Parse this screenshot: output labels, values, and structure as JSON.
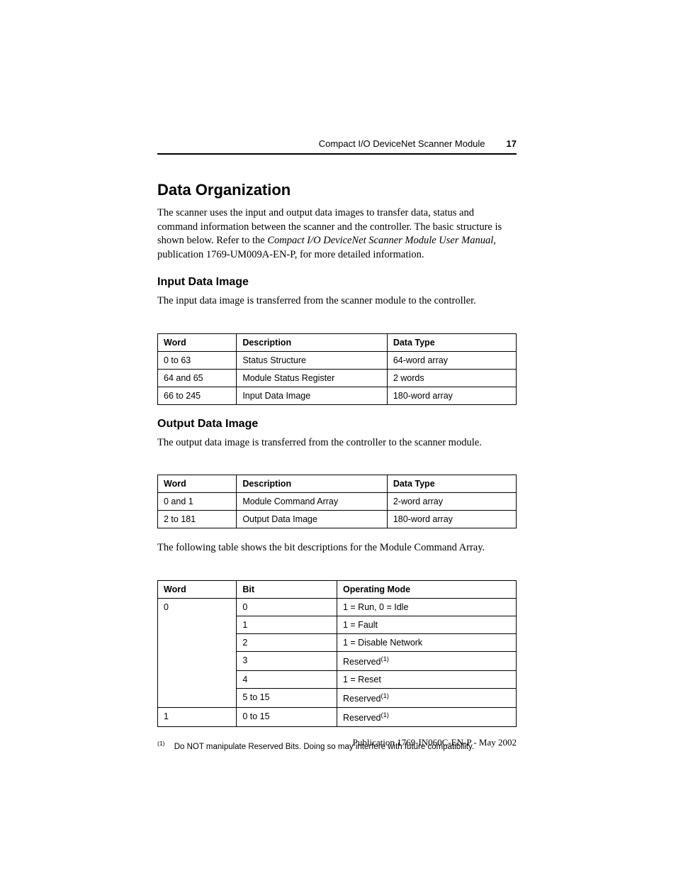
{
  "header": {
    "title": "Compact I/O DeviceNet Scanner Module",
    "page_number": "17"
  },
  "section": {
    "h1": "Data Organization",
    "intro_part1": "The scanner uses the input and output data images to transfer data, status and command information between the scanner and the controller. The basic structure is shown below. Refer to the ",
    "intro_italic": "Compact I/O DeviceNet Scanner Module User Manual",
    "intro_part2": ", publication 1769-UM009A-EN-P, for more detailed information."
  },
  "input_section": {
    "h2": "Input Data Image",
    "text": "The input data image is transferred from the scanner module to the controller.",
    "table": {
      "headers": [
        "Word",
        "Description",
        "Data Type"
      ],
      "rows": [
        [
          "0 to 63",
          "Status Structure",
          "64-word array"
        ],
        [
          "64 and 65",
          "Module Status Register",
          "2 words"
        ],
        [
          "66 to 245",
          "Input Data Image",
          "180-word array"
        ]
      ]
    }
  },
  "output_section": {
    "h2": "Output Data Image",
    "text": "The output data image is transferred from the controller to the scanner module.",
    "table": {
      "headers": [
        "Word",
        "Description",
        "Data Type"
      ],
      "rows": [
        [
          "0 and 1",
          "Module Command Array",
          "2-word array"
        ],
        [
          "2 to 181",
          "Output Data Image",
          "180-word array"
        ]
      ]
    },
    "text2": "The following table shows the bit descriptions for the Module Command Array."
  },
  "bit_table": {
    "headers": [
      "Word",
      "Bit",
      "Operating Mode"
    ],
    "rows": [
      {
        "word": "0",
        "bit": "0",
        "mode": "1 = Run, 0 = Idle",
        "sup": false
      },
      {
        "word": "",
        "bit": "1",
        "mode": "1 = Fault",
        "sup": false
      },
      {
        "word": "",
        "bit": "2",
        "mode": "1 = Disable Network",
        "sup": false
      },
      {
        "word": "",
        "bit": "3",
        "mode": "Reserved",
        "sup": true
      },
      {
        "word": "",
        "bit": "4",
        "mode": "1 = Reset",
        "sup": false
      },
      {
        "word": "",
        "bit": "5 to 15",
        "mode": "Reserved",
        "sup": true
      },
      {
        "word": "1",
        "bit": "0 to 15",
        "mode": "Reserved",
        "sup": true
      }
    ]
  },
  "footnote": {
    "marker": "(1)",
    "text": "Do NOT manipulate Reserved Bits. Doing so may interfere with future compatibility."
  },
  "footer": {
    "text": "Publication 1769-IN060C-EN-P - May 2002"
  }
}
